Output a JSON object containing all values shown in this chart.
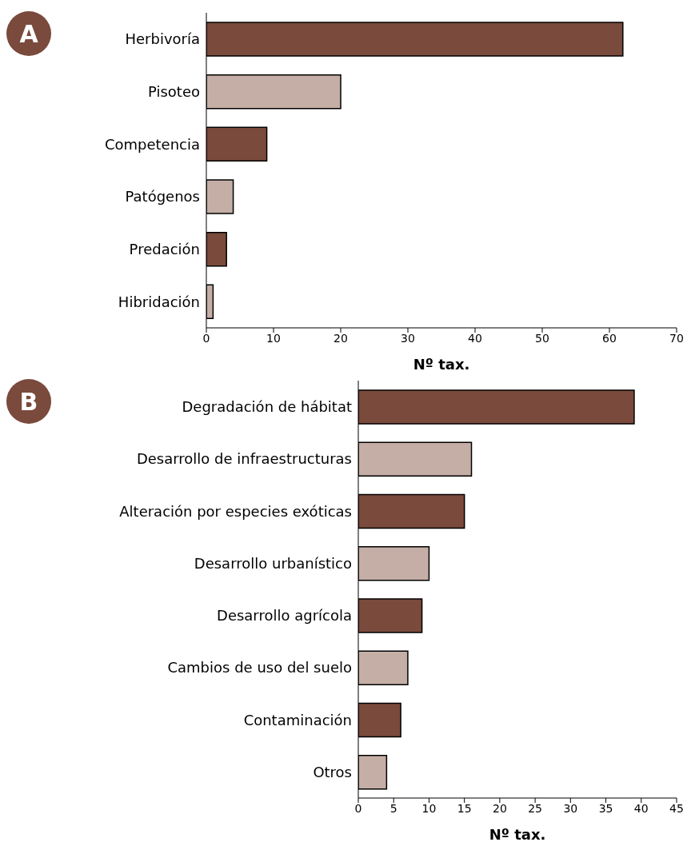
{
  "chart_data": [
    {
      "type": "bar",
      "orientation": "horizontal",
      "annotations": [
        "A"
      ],
      "xlabel": "Nº tax.",
      "categories": [
        "Herbivoría",
        "Pisoteo",
        "Competencia",
        "Patógenos",
        "Predación",
        "Hibridación"
      ],
      "values": [
        62,
        20,
        9,
        4,
        3,
        1
      ],
      "colors": [
        "#7a4a3c",
        "#c4aea5",
        "#7a4a3c",
        "#c4aea5",
        "#7a4a3c",
        "#c4aea5"
      ],
      "xlim": [
        0,
        70
      ],
      "xticks": [
        0,
        10,
        20,
        30,
        40,
        50,
        60,
        70
      ],
      "grid": false,
      "legend": false
    },
    {
      "type": "bar",
      "orientation": "horizontal",
      "annotations": [
        "B"
      ],
      "xlabel": "Nº tax.",
      "categories": [
        "Degradación de hábitat",
        "Desarrollo de infraestructuras",
        "Alteración por especies exóticas",
        "Desarrollo urbanístico",
        "Desarrollo agrícola",
        "Cambios de uso del suelo",
        "Contaminación",
        "Otros"
      ],
      "values": [
        39,
        16,
        15,
        10,
        9,
        7,
        6,
        4
      ],
      "colors": [
        "#7a4a3c",
        "#c4aea5",
        "#7a4a3c",
        "#c4aea5",
        "#7a4a3c",
        "#c4aea5",
        "#7a4a3c",
        "#c4aea5"
      ],
      "xlim": [
        0,
        45
      ],
      "xticks": [
        0,
        5,
        10,
        15,
        20,
        25,
        30,
        35,
        40,
        45
      ],
      "grid": false,
      "legend": false
    }
  ]
}
